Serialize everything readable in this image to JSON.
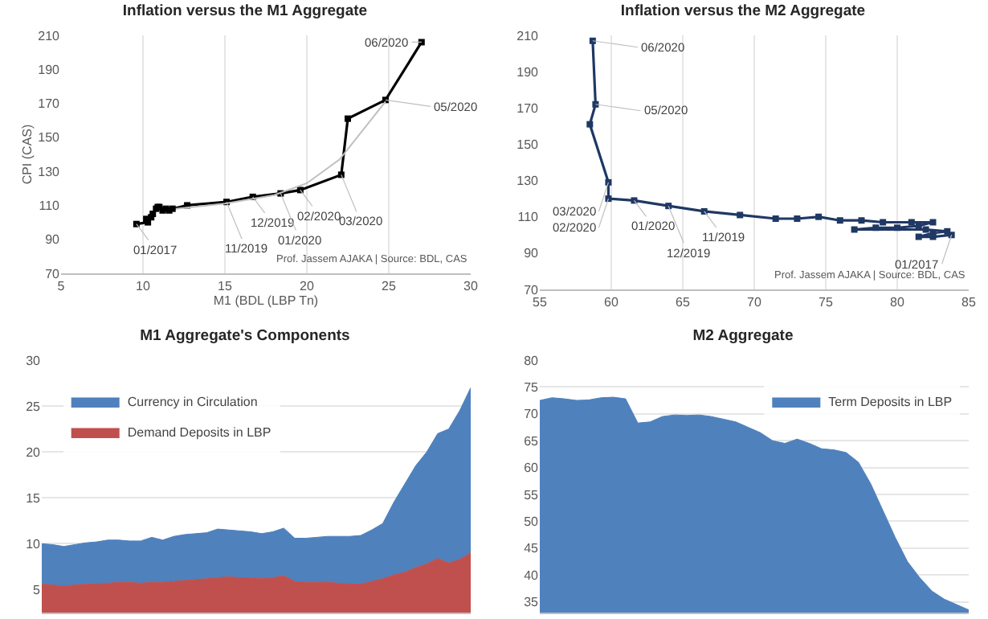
{
  "chart_data": [
    {
      "type": "line",
      "title": "Inflation versus the M1 Aggregate",
      "xlabel": "M1 (BDL (LBP Tn)",
      "ylabel": "CPI (CAS)",
      "xlim": [
        5,
        30
      ],
      "xticks": [
        5,
        10,
        15,
        20,
        25,
        30
      ],
      "ylim": [
        70,
        210
      ],
      "yticks": [
        70,
        90,
        110,
        130,
        150,
        170,
        190,
        210
      ],
      "grid": "x",
      "marker": "square",
      "legend": false,
      "series": [
        {
          "type": "line",
          "color": "#bfbfbf",
          "marker": "none",
          "x": [
            12,
            15,
            18,
            20,
            22,
            24.8
          ],
          "values": [
            108,
            111,
            116,
            123,
            137,
            171
          ]
        },
        {
          "color": "#000000",
          "x": [
            9.6,
            10.3,
            10.5,
            10.2,
            10.6,
            10.8,
            11,
            11.2,
            10.9,
            11.4,
            11.6,
            11.8,
            12.7,
            15.1,
            16.7,
            18.4,
            19.6,
            22.1,
            22.5,
            24.8,
            27
          ],
          "values": [
            99,
            100,
            103,
            102,
            105,
            108,
            109,
            107,
            109,
            108,
            107,
            108,
            110,
            112,
            115,
            117,
            119,
            128,
            161,
            172,
            206
          ]
        }
      ],
      "annotations": [
        {
          "text": "01/2017",
          "x": 9.6,
          "y": 99
        },
        {
          "text": "11/2019",
          "x": 15.1,
          "y": 112
        },
        {
          "text": "12/2019",
          "x": 16.7,
          "y": 115
        },
        {
          "text": "01/2020",
          "x": 18.4,
          "y": 117
        },
        {
          "text": "02/2020",
          "x": 19.6,
          "y": 119
        },
        {
          "text": "03/2020",
          "x": 22.1,
          "y": 128
        },
        {
          "text": "05/2020",
          "x": 24.8,
          "y": 172
        },
        {
          "text": "06/2020",
          "x": 27,
          "y": 206
        },
        "Prof. Jassem AJAKA | Source: BDL, CAS"
      ]
    },
    {
      "type": "line",
      "title": "Inflation versus the M2 Aggregate",
      "xlim": [
        55,
        85
      ],
      "xticks": [
        55,
        60,
        65,
        70,
        75,
        80,
        85
      ],
      "ylim": [
        70,
        210
      ],
      "yticks": [
        70,
        90,
        110,
        130,
        150,
        170,
        190,
        210
      ],
      "grid": "x",
      "marker": "square",
      "legend": false,
      "series": [
        {
          "color": "#1f3864",
          "x": [
            83.8,
            82.5,
            81.5,
            82.5,
            83.5,
            82,
            77,
            78.5,
            80,
            81.5,
            82.5,
            81,
            79,
            77.5,
            76,
            74.5,
            73,
            71.5,
            69,
            66.5,
            64,
            61.6,
            59.8,
            59.8,
            58.5,
            58.9,
            58.7
          ],
          "values": [
            100,
            99,
            99,
            101,
            102,
            103,
            103,
            104,
            104,
            105,
            107,
            107,
            107,
            108,
            108,
            110,
            109,
            109,
            111,
            113,
            116,
            119,
            120,
            129,
            161,
            172,
            207
          ]
        }
      ],
      "annotations": [
        {
          "text": "01/2017",
          "x": 83.8,
          "y": 100
        },
        {
          "text": "11/2019",
          "x": 66.5,
          "y": 113
        },
        {
          "text": "12/2019",
          "x": 64,
          "y": 116
        },
        {
          "text": "01/2020",
          "x": 61.6,
          "y": 119
        },
        {
          "text": "02/2020",
          "x": 59.8,
          "y": 120
        },
        {
          "text": "03/2020",
          "x": 59.8,
          "y": 129
        },
        {
          "text": "05/2020",
          "x": 58.9,
          "y": 172
        },
        {
          "text": "06/2020",
          "x": 58.7,
          "y": 207
        },
        "Prof. Jassem AJAKA | Source: BDL, CAS"
      ]
    },
    {
      "type": "area",
      "title": "M1 Aggregate's Components",
      "stacked": true,
      "ylim": [
        2.5,
        30
      ],
      "yticks": [
        5,
        10,
        15,
        20,
        25,
        30
      ],
      "grid": "y",
      "legend": "top left",
      "tick_labels": "y",
      "categories": [
        null,
        null,
        null,
        null,
        null,
        null,
        null,
        null,
        null,
        null,
        null,
        null,
        null,
        null,
        null,
        null,
        null,
        null,
        null,
        null,
        null,
        null,
        null,
        null,
        null,
        null,
        null,
        null,
        null,
        null,
        null,
        null,
        null,
        null,
        null,
        null,
        null,
        null,
        null,
        null
      ],
      "series": [
        {
          "name": "Demand Deposits in LBP",
          "color": "#c0504d",
          "values": [
            5.6,
            5.5,
            5.4,
            5.5,
            5.6,
            5.6,
            5.7,
            5.8,
            5.8,
            5.7,
            5.8,
            5.8,
            5.9,
            6,
            6.1,
            6.2,
            6.3,
            6.4,
            6.3,
            6.3,
            6.2,
            6.3,
            6.5,
            5.9,
            5.8,
            5.8,
            5.8,
            5.7,
            5.6,
            5.6,
            5.9,
            6.2,
            6.6,
            6.9,
            7.4,
            7.8,
            8.4,
            7.9,
            8.3,
            9
          ]
        },
        {
          "name": "Currency in Circulation",
          "color": "#4f81bd",
          "values": [
            4.4,
            4.4,
            4.3,
            4.4,
            4.5,
            4.6,
            4.7,
            4.6,
            4.5,
            4.6,
            4.9,
            4.6,
            4.9,
            5,
            5,
            5,
            5.3,
            5.1,
            5.1,
            5,
            4.9,
            5,
            5.2,
            4.7,
            4.8,
            4.9,
            5,
            5.1,
            5.2,
            5.3,
            5.6,
            6,
            7.9,
            9.6,
            11.1,
            12.2,
            13.6,
            14.6,
            16.2,
            18
          ]
        }
      ]
    },
    {
      "type": "area",
      "title": "M2 Aggregate",
      "ylim": [
        33,
        80
      ],
      "yticks": [
        35,
        40,
        45,
        50,
        55,
        60,
        65,
        70,
        75,
        80
      ],
      "grid": "y",
      "legend": "top right",
      "tick_labels": "y",
      "categories": [
        null,
        null,
        null,
        null,
        null,
        null,
        null,
        null,
        null,
        null,
        null,
        null,
        null,
        null,
        null,
        null,
        null,
        null,
        null,
        null,
        null,
        null,
        null,
        null,
        null,
        null,
        null,
        null,
        null,
        null,
        null,
        null,
        null,
        null,
        null,
        null
      ],
      "series": [
        {
          "name": "Term Deposits in LBP",
          "color": "#4f81bd",
          "values": [
            72.5,
            73,
            72.8,
            72.5,
            72.6,
            73,
            73.1,
            72.8,
            68.3,
            68.5,
            69.5,
            69.8,
            69.7,
            69.8,
            69.5,
            69,
            68.5,
            67.5,
            66.5,
            65,
            64.5,
            65.3,
            64.5,
            63.5,
            63.3,
            62.8,
            61,
            57,
            52,
            47,
            42.5,
            39.5,
            37,
            35.5,
            34.5,
            33.5
          ]
        }
      ]
    }
  ]
}
